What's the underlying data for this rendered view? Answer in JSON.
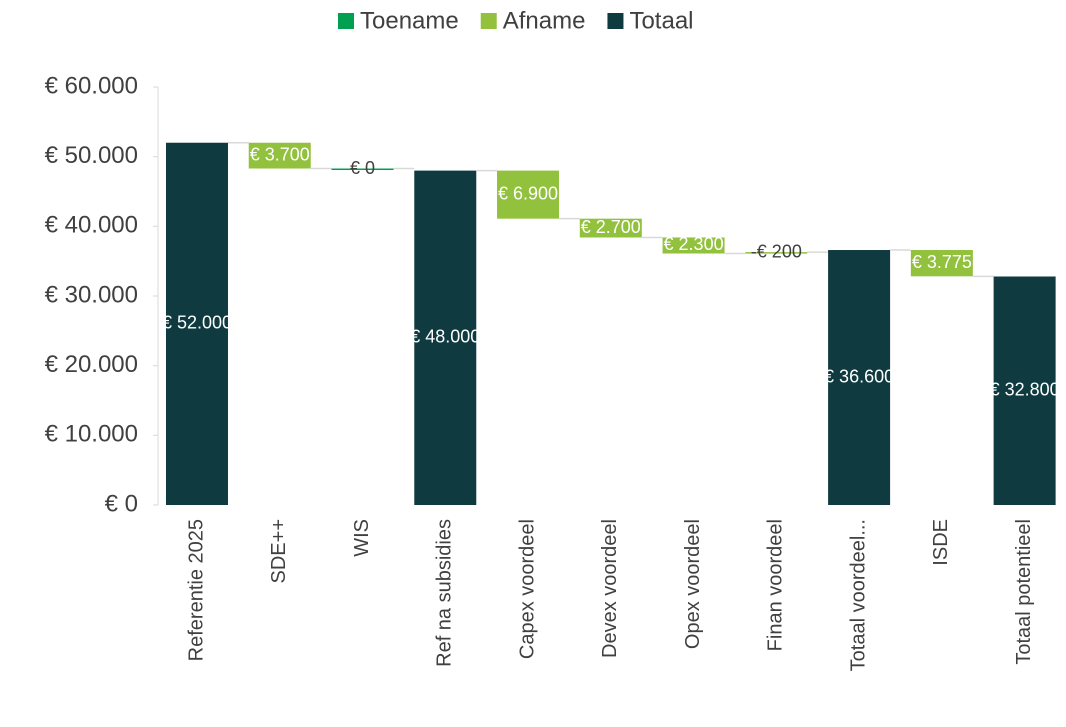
{
  "chart_data": {
    "type": "waterfall",
    "legend": [
      {
        "name": "Toename",
        "color": "#00a050"
      },
      {
        "name": "Afname",
        "color": "#92c13e"
      },
      {
        "name": "Totaal",
        "color": "#0e3a40"
      }
    ],
    "categories": [
      "Referentie 2025",
      "SDE++",
      "WIS",
      "Ref na subsidies",
      "Capex voordeel",
      "Devex voordeel",
      "Opex voordeel",
      "Finan voordeel",
      "Totaal voordeel...",
      "ISDE",
      "Totaal potentieel"
    ],
    "values": [
      52000,
      3700,
      0,
      48000,
      6900,
      2700,
      2300,
      -200,
      36600,
      3775,
      32800
    ],
    "value_labels": [
      "€ 52.000",
      "€ 3.700",
      "€ 0",
      "€ 48.000",
      "€ 6.900",
      "€ 2.700",
      "€ 2.300",
      "-€ 200",
      "€ 36.600",
      "€ 3.775",
      "€ 32.800"
    ],
    "kinds": [
      2,
      1,
      0,
      2,
      1,
      1,
      1,
      1,
      2,
      1,
      2
    ],
    "ylim": [
      0,
      60000
    ],
    "yticks": [
      {
        "value": 0,
        "label": "€ 0"
      },
      {
        "value": 10000,
        "label": "€ 10.000"
      },
      {
        "value": 20000,
        "label": "€ 20.000"
      },
      {
        "value": 30000,
        "label": "€ 30.000"
      },
      {
        "value": 40000,
        "label": "€ 40.000"
      },
      {
        "value": 50000,
        "label": "€ 50.000"
      },
      {
        "value": 60000,
        "label": "€ 60.000"
      }
    ]
  }
}
